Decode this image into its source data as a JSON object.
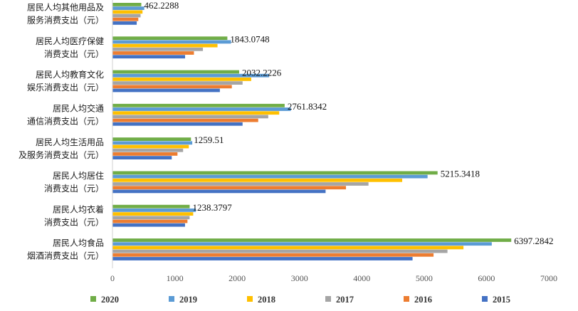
{
  "chart_data": {
    "type": "bar",
    "orientation": "horizontal",
    "categories": [
      [
        "居民人均其他用品及",
        "服务消费支出（元）"
      ],
      [
        "居民人均医疗保健",
        "消费支出（元）"
      ],
      [
        "居民人均教育文化",
        "娱乐消费支出（元）"
      ],
      [
        "居民人均交通",
        "通信消费支出（元）"
      ],
      [
        "居民人均生活用品",
        "及服务消费支出（元）"
      ],
      [
        "居民人均居住",
        "消费支出（元）"
      ],
      [
        "居民人均衣着",
        "消费支出（元）"
      ],
      [
        "居民人均食品",
        "烟酒消费支出（元）"
      ]
    ],
    "series": [
      {
        "name": "2020",
        "color": "#70ad47",
        "values": [
          462.2288,
          1843.0748,
          2032.2226,
          2761.8342,
          1259.51,
          5215.3418,
          1238.3797,
          6397.2842
        ]
      },
      {
        "name": "2019",
        "color": "#5b9bd5",
        "values": [
          510,
          1902,
          2513,
          2862,
          1280,
          5055,
          1338,
          6085
        ]
      },
      {
        "name": "2018",
        "color": "#ffc000",
        "values": [
          482,
          1685,
          2226,
          2675,
          1225,
          4648,
          1295,
          5631
        ]
      },
      {
        "name": "2017",
        "color": "#a5a5a5",
        "values": [
          451,
          1451,
          2087,
          2499,
          1133,
          4107,
          1238,
          5374
        ]
      },
      {
        "name": "2016",
        "color": "#ed7d31",
        "values": [
          414,
          1307,
          1915,
          2338,
          1043,
          3746,
          1203,
          5151
        ]
      },
      {
        "name": "2015",
        "color": "#4472c4",
        "values": [
          389,
          1165,
          1723,
          2087,
          951,
          3419,
          1164,
          4814
        ]
      }
    ],
    "data_labels": [
      "462.2288",
      "1843.0748",
      "2032.2226",
      "2761.8342",
      "1259.51",
      "5215.3418",
      "1238.3797",
      "6397.2842"
    ],
    "xlim": [
      0,
      7000
    ],
    "xticks": [
      "0",
      "1000",
      "2000",
      "3000",
      "4000",
      "5000",
      "6000",
      "7000"
    ],
    "xlabel": "",
    "ylabel": "",
    "title": "",
    "grid": false,
    "legend_position": "bottom"
  }
}
